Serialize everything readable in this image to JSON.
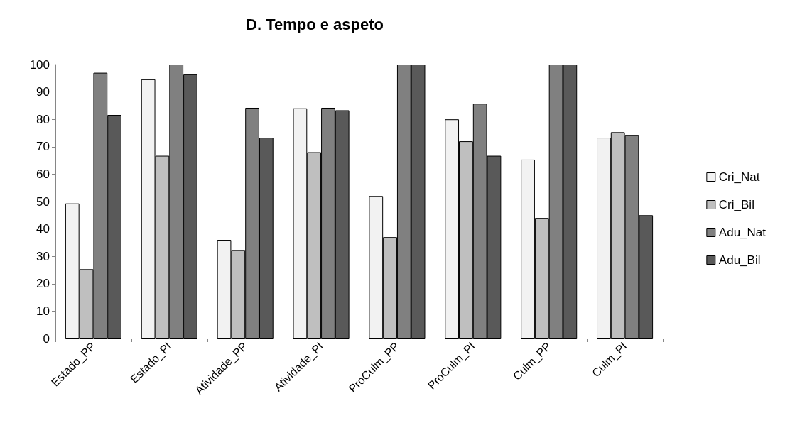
{
  "chart_data": {
    "type": "bar",
    "title": "D. Tempo e aspeto",
    "categories": [
      "Estado_PP",
      "Estado_PI",
      "Atividade_PP",
      "Atividade_PI",
      "ProCulm_PP",
      "ProCulm_PI",
      "Culm_PP",
      "Culm_PI"
    ],
    "series": [
      {
        "name": "Cri_Nat",
        "color": "#f2f2f2",
        "values": [
          49.3,
          94.6,
          36,
          84,
          52,
          80,
          65.3,
          73.3
        ]
      },
      {
        "name": "Cri_Bil",
        "color": "#bfbfbf",
        "values": [
          25.3,
          66.7,
          32.3,
          68,
          37,
          72,
          44,
          75.3
        ]
      },
      {
        "name": "Adu_Nat",
        "color": "#808080",
        "values": [
          97,
          100,
          84.2,
          84.2,
          100,
          85.7,
          100,
          74.3
        ]
      },
      {
        "name": "Adu_Bil",
        "color": "#595959",
        "values": [
          81.6,
          96.6,
          73.3,
          83.3,
          100,
          66.7,
          100,
          45
        ]
      }
    ],
    "ylim": [
      0,
      100
    ],
    "yticks": [
      0,
      10,
      20,
      30,
      40,
      50,
      60,
      70,
      80,
      90,
      100
    ],
    "grid": false,
    "legend": "right"
  }
}
